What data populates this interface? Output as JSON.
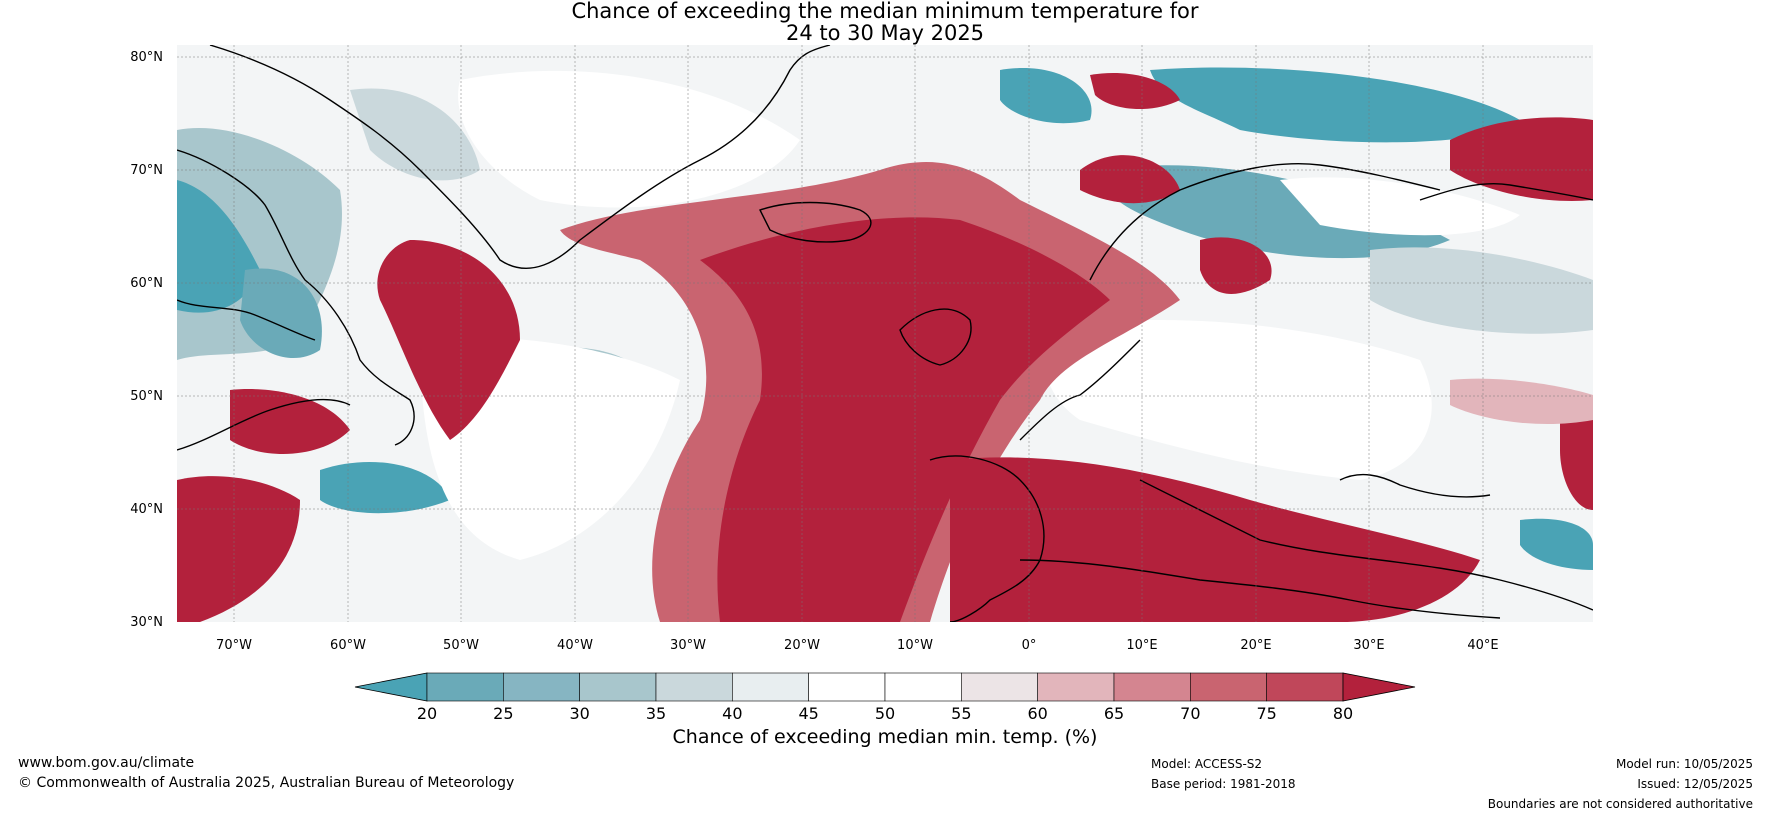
{
  "title": {
    "line1": "Chance of exceeding the median minimum temperature for",
    "line2": "24 to 30 May 2025"
  },
  "map": {
    "lat_labels": [
      "80°N",
      "70°N",
      "60°N",
      "50°N",
      "40°N",
      "30°N"
    ],
    "lon_labels": [
      "70°W",
      "60°W",
      "50°W",
      "40°W",
      "30°W",
      "20°W",
      "10°W",
      "0°",
      "10°E",
      "20°E",
      "30°E",
      "40°E"
    ]
  },
  "colorbar": {
    "ticks": [
      "20",
      "25",
      "30",
      "35",
      "40",
      "45",
      "50",
      "55",
      "60",
      "65",
      "70",
      "75",
      "80"
    ],
    "colors": [
      "#4aa3b5",
      "#6aaab8",
      "#86b5c2",
      "#a8c6cc",
      "#cad8dc",
      "#e8eef0",
      "#ffffff",
      "#ffffff",
      "#ece4e6",
      "#e2b5bb",
      "#d48590",
      "#c96470",
      "#c0475a",
      "#b3213c"
    ],
    "label": "Chance of exceeding median min. temp. (%)"
  },
  "footer": {
    "website": "www.bom.gov.au/climate",
    "copyright": "© Commonwealth of Australia 2025, Australian Bureau of Meteorology",
    "model": "Model: ACCESS-S2",
    "base_period": "Base period: 1981-2018",
    "model_run": "Model run: 10/05/2025",
    "issued": "Issued: 12/05/2025",
    "disclaimer": "Boundaries are not considered authoritative"
  }
}
